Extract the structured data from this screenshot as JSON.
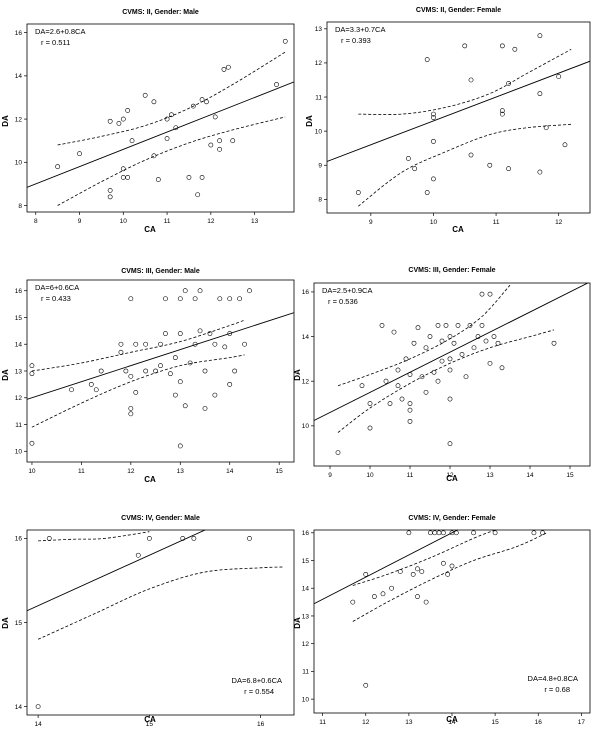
{
  "chart_data": [
    {
      "type": "scatter",
      "title": "CVMS: II, Gender: Male",
      "equation": "DA=2.6+0.8CA",
      "r_label": "r = 0.511",
      "annotation_position": "top-left",
      "xlabel": "CA",
      "ylabel": "DA",
      "xlim": [
        7.8,
        13.9
      ],
      "ylim": [
        7.7,
        16.4
      ],
      "xticks": [
        8,
        9,
        10,
        11,
        12,
        13
      ],
      "yticks": [
        8,
        10,
        12,
        14,
        16
      ],
      "fit": {
        "intercept": 2.6,
        "slope": 0.8
      },
      "ci_upper": [
        [
          8.5,
          10.8
        ],
        [
          9.5,
          11.2
        ],
        [
          10.5,
          11.7
        ],
        [
          11.5,
          12.5
        ],
        [
          12.5,
          13.6
        ],
        [
          13.7,
          15.1
        ]
      ],
      "ci_lower": [
        [
          8.5,
          8.0
        ],
        [
          9.5,
          9.1
        ],
        [
          10.5,
          10.1
        ],
        [
          11.5,
          10.9
        ],
        [
          12.5,
          11.5
        ],
        [
          13.7,
          12.1
        ]
      ],
      "points": [
        [
          8.5,
          9.8
        ],
        [
          9.0,
          10.4
        ],
        [
          9.7,
          11.9
        ],
        [
          9.7,
          8.4
        ],
        [
          9.7,
          8.7
        ],
        [
          9.9,
          11.8
        ],
        [
          10.0,
          12.0
        ],
        [
          10.0,
          9.7
        ],
        [
          10.0,
          9.3
        ],
        [
          10.1,
          12.4
        ],
        [
          10.1,
          9.3
        ],
        [
          10.2,
          11.0
        ],
        [
          10.5,
          13.1
        ],
        [
          10.7,
          12.8
        ],
        [
          10.7,
          10.3
        ],
        [
          10.8,
          9.2
        ],
        [
          11.0,
          12.0
        ],
        [
          11.0,
          11.1
        ],
        [
          11.1,
          12.2
        ],
        [
          11.2,
          11.6
        ],
        [
          11.5,
          9.3
        ],
        [
          11.6,
          12.6
        ],
        [
          11.7,
          8.5
        ],
        [
          11.8,
          12.9
        ],
        [
          11.8,
          9.3
        ],
        [
          11.9,
          12.8
        ],
        [
          12.0,
          10.8
        ],
        [
          12.1,
          12.1
        ],
        [
          12.2,
          10.6
        ],
        [
          12.2,
          11.0
        ],
        [
          12.3,
          14.3
        ],
        [
          12.4,
          14.4
        ],
        [
          12.5,
          11.0
        ],
        [
          13.5,
          13.6
        ],
        [
          13.7,
          15.6
        ]
      ]
    },
    {
      "type": "scatter",
      "title": "CVMS: II, Gender: Female",
      "equation": "DA=3.3+0.7CA",
      "r_label": "r = 0.393",
      "annotation_position": "top-left",
      "xlabel": "CA",
      "ylabel": "DA",
      "xlim": [
        8.3,
        12.5
      ],
      "ylim": [
        7.6,
        13.2
      ],
      "xticks": [
        9,
        10,
        11,
        12
      ],
      "yticks": [
        8,
        9,
        10,
        11,
        12,
        13
      ],
      "fit": {
        "intercept": 3.3,
        "slope": 0.7
      },
      "ci_upper": [
        [
          8.8,
          10.5
        ],
        [
          9.5,
          10.5
        ],
        [
          10.2,
          10.7
        ],
        [
          10.9,
          11.1
        ],
        [
          11.5,
          11.7
        ],
        [
          12.2,
          12.4
        ]
      ],
      "ci_lower": [
        [
          8.8,
          7.8
        ],
        [
          9.5,
          8.8
        ],
        [
          10.2,
          9.4
        ],
        [
          10.9,
          9.9
        ],
        [
          11.5,
          10.1
        ],
        [
          12.2,
          10.2
        ]
      ],
      "points": [
        [
          8.8,
          8.2
        ],
        [
          9.6,
          9.2
        ],
        [
          9.7,
          8.9
        ],
        [
          9.9,
          12.1
        ],
        [
          9.9,
          8.2
        ],
        [
          10.0,
          10.4
        ],
        [
          10.0,
          10.5
        ],
        [
          10.0,
          9.7
        ],
        [
          10.0,
          8.6
        ],
        [
          10.5,
          12.5
        ],
        [
          10.6,
          11.5
        ],
        [
          10.6,
          9.3
        ],
        [
          10.9,
          9.0
        ],
        [
          11.1,
          12.5
        ],
        [
          11.1,
          10.6
        ],
        [
          11.1,
          10.5
        ],
        [
          11.2,
          11.4
        ],
        [
          11.2,
          8.9
        ],
        [
          11.3,
          12.4
        ],
        [
          11.7,
          12.8
        ],
        [
          11.7,
          11.1
        ],
        [
          11.7,
          8.8
        ],
        [
          11.8,
          10.1
        ],
        [
          12.0,
          11.6
        ],
        [
          12.1,
          9.6
        ]
      ]
    },
    {
      "type": "scatter",
      "title": "CVMS: III, Gender: Male",
      "equation": "DA=6+0.6CA",
      "r_label": "r = 0.433",
      "annotation_position": "top-left",
      "xlabel": "CA",
      "ylabel": "DA",
      "xlim": [
        9.9,
        15.3
      ],
      "ylim": [
        9.6,
        16.4
      ],
      "xticks": [
        10,
        11,
        12,
        13,
        14,
        15
      ],
      "yticks": [
        10,
        11,
        12,
        13,
        14,
        15,
        16
      ],
      "fit": {
        "intercept": 6,
        "slope": 0.6
      },
      "ci_upper": [
        [
          10.0,
          13.0
        ],
        [
          11.0,
          13.3
        ],
        [
          12.0,
          13.7
        ],
        [
          13.0,
          14.1
        ],
        [
          14.0,
          14.7
        ],
        [
          14.3,
          14.9
        ]
      ],
      "ci_lower": [
        [
          10.0,
          10.9
        ],
        [
          11.0,
          11.8
        ],
        [
          12.0,
          12.6
        ],
        [
          13.0,
          13.2
        ],
        [
          14.0,
          13.5
        ],
        [
          14.3,
          13.6
        ]
      ],
      "points": [
        [
          10.0,
          13.2
        ],
        [
          10.0,
          12.9
        ],
        [
          10.0,
          10.3
        ],
        [
          10.8,
          12.3
        ],
        [
          11.2,
          12.5
        ],
        [
          11.3,
          12.3
        ],
        [
          11.4,
          13.0
        ],
        [
          11.8,
          14.0
        ],
        [
          11.8,
          13.7
        ],
        [
          11.9,
          13.0
        ],
        [
          12.0,
          15.7
        ],
        [
          12.0,
          12.8
        ],
        [
          12.0,
          11.6
        ],
        [
          12.0,
          11.4
        ],
        [
          12.1,
          12.2
        ],
        [
          12.1,
          14.0
        ],
        [
          12.3,
          14.0
        ],
        [
          12.3,
          13.0
        ],
        [
          12.5,
          13.0
        ],
        [
          12.6,
          14.0
        ],
        [
          12.6,
          13.2
        ],
        [
          12.7,
          15.7
        ],
        [
          12.7,
          14.4
        ],
        [
          12.8,
          12.9
        ],
        [
          12.9,
          13.5
        ],
        [
          12.9,
          12.1
        ],
        [
          13.0,
          15.7
        ],
        [
          13.0,
          14.4
        ],
        [
          13.0,
          12.6
        ],
        [
          13.0,
          10.2
        ],
        [
          13.1,
          16.0
        ],
        [
          13.1,
          11.7
        ],
        [
          13.2,
          13.3
        ],
        [
          13.3,
          15.7
        ],
        [
          13.3,
          14.0
        ],
        [
          13.4,
          16.0
        ],
        [
          13.4,
          14.5
        ],
        [
          13.5,
          13.0
        ],
        [
          13.5,
          11.6
        ],
        [
          13.6,
          14.4
        ],
        [
          13.7,
          14.0
        ],
        [
          13.7,
          12.1
        ],
        [
          13.8,
          15.7
        ],
        [
          13.9,
          13.9
        ],
        [
          14.0,
          15.7
        ],
        [
          14.0,
          14.4
        ],
        [
          14.0,
          12.5
        ],
        [
          14.1,
          13.0
        ],
        [
          14.2,
          15.7
        ],
        [
          14.3,
          14.0
        ],
        [
          14.4,
          16.0
        ]
      ]
    },
    {
      "type": "scatter",
      "title": "CVMS: III, Gender: Female",
      "equation": "DA=2.5+0.9CA",
      "r_label": "r = 0.536",
      "annotation_position": "top-left",
      "xlabel": "CA",
      "ylabel": "DA",
      "xlim": [
        8.6,
        15.5
      ],
      "ylim": [
        8.2,
        16.4
      ],
      "xticks": [
        9,
        10,
        11,
        12,
        13,
        14,
        15
      ],
      "yticks": [
        10,
        12,
        14,
        16
      ],
      "fit": {
        "intercept": 2.5,
        "slope": 0.9
      },
      "ci_upper": [
        [
          9.2,
          11.8
        ],
        [
          10.0,
          12.3
        ],
        [
          11.0,
          13.0
        ],
        [
          12.0,
          13.9
        ],
        [
          12.8,
          14.9
        ],
        [
          13.5,
          16.3
        ]
      ],
      "ci_lower": [
        [
          9.2,
          9.7
        ],
        [
          10.0,
          10.8
        ],
        [
          11.0,
          11.9
        ],
        [
          12.0,
          12.8
        ],
        [
          13.0,
          13.5
        ],
        [
          14.0,
          14.0
        ],
        [
          14.6,
          14.3
        ]
      ],
      "points": [
        [
          9.2,
          8.8
        ],
        [
          9.8,
          11.8
        ],
        [
          10.0,
          9.9
        ],
        [
          10.0,
          11.0
        ],
        [
          10.3,
          14.5
        ],
        [
          10.4,
          12.0
        ],
        [
          10.5,
          11.0
        ],
        [
          10.6,
          14.2
        ],
        [
          10.7,
          12.5
        ],
        [
          10.7,
          11.8
        ],
        [
          10.8,
          11.2
        ],
        [
          10.9,
          13.0
        ],
        [
          11.0,
          12.3
        ],
        [
          11.0,
          11.0
        ],
        [
          11.0,
          10.7
        ],
        [
          11.0,
          10.2
        ],
        [
          11.1,
          13.7
        ],
        [
          11.2,
          14.4
        ],
        [
          11.3,
          12.2
        ],
        [
          11.4,
          13.5
        ],
        [
          11.4,
          11.5
        ],
        [
          11.5,
          14.0
        ],
        [
          11.6,
          12.4
        ],
        [
          11.7,
          12.0
        ],
        [
          11.7,
          14.5
        ],
        [
          11.8,
          13.8
        ],
        [
          11.8,
          12.9
        ],
        [
          11.9,
          14.5
        ],
        [
          12.0,
          14.0
        ],
        [
          12.0,
          13.0
        ],
        [
          12.0,
          12.5
        ],
        [
          12.0,
          11.2
        ],
        [
          12.0,
          9.2
        ],
        [
          12.1,
          13.7
        ],
        [
          12.2,
          14.5
        ],
        [
          12.3,
          13.2
        ],
        [
          12.4,
          12.2
        ],
        [
          12.5,
          14.5
        ],
        [
          12.6,
          13.5
        ],
        [
          12.7,
          14.0
        ],
        [
          12.8,
          15.9
        ],
        [
          12.8,
          14.5
        ],
        [
          12.9,
          13.8
        ],
        [
          13.0,
          12.8
        ],
        [
          13.0,
          15.9
        ],
        [
          13.1,
          14.0
        ],
        [
          13.2,
          13.7
        ],
        [
          13.3,
          12.6
        ],
        [
          14.6,
          13.7
        ]
      ]
    },
    {
      "type": "scatter",
      "title": "CVMS: IV, Gender: Male",
      "equation": "DA=6.8+0.6CA",
      "r_label": "r = 0.554",
      "annotation_position": "bottom-right",
      "xlabel": "CA",
      "ylabel": "DA",
      "xlim": [
        13.9,
        16.3
      ],
      "ylim": [
        13.9,
        16.1
      ],
      "xticks": [
        14,
        15,
        16
      ],
      "yticks": [
        14,
        15,
        16
      ],
      "fit": {
        "intercept": 6.8,
        "slope": 0.6
      },
      "ci_upper": [
        [
          14.0,
          15.97
        ],
        [
          14.3,
          15.99
        ],
        [
          14.6,
          16.0
        ],
        [
          15.0,
          16.08
        ]
      ],
      "ci_lower": [
        [
          14.0,
          14.8
        ],
        [
          14.5,
          15.1
        ],
        [
          15.0,
          15.4
        ],
        [
          15.5,
          15.6
        ],
        [
          16.0,
          15.65
        ],
        [
          16.2,
          15.66
        ]
      ],
      "points": [
        [
          14.0,
          14.0
        ],
        [
          14.1,
          16.0
        ],
        [
          14.9,
          15.8
        ],
        [
          15.0,
          16.0
        ],
        [
          15.3,
          16.0
        ],
        [
          15.4,
          16.0
        ],
        [
          15.9,
          16.0
        ]
      ]
    },
    {
      "type": "scatter",
      "title": "CVMS: IV, Gender: Female",
      "equation": "DA=4.8+0.8CA",
      "r_label": "r = 0.68",
      "annotation_position": "bottom-right",
      "xlabel": "CA",
      "ylabel": "DA",
      "xlim": [
        10.8,
        17.2
      ],
      "ylim": [
        9.5,
        16.1
      ],
      "xticks": [
        11,
        12,
        13,
        14,
        15,
        16,
        17
      ],
      "yticks": [
        10,
        11,
        12,
        13,
        14,
        15,
        16
      ],
      "fit": {
        "intercept": 4.8,
        "slope": 0.8
      },
      "ci_upper": [
        [
          11.7,
          14.1
        ],
        [
          12.5,
          14.5
        ],
        [
          13.5,
          15.1
        ],
        [
          14.5,
          15.8
        ],
        [
          15.0,
          16.1
        ]
      ],
      "ci_lower": [
        [
          11.7,
          12.8
        ],
        [
          12.5,
          13.5
        ],
        [
          13.5,
          14.3
        ],
        [
          14.5,
          15.0
        ],
        [
          15.5,
          15.5
        ],
        [
          16.2,
          16.0
        ]
      ],
      "points": [
        [
          11.7,
          13.5
        ],
        [
          12.0,
          14.5
        ],
        [
          12.0,
          10.5
        ],
        [
          12.2,
          13.7
        ],
        [
          12.4,
          13.8
        ],
        [
          12.6,
          14.0
        ],
        [
          12.8,
          14.6
        ],
        [
          13.0,
          16.0
        ],
        [
          13.1,
          14.5
        ],
        [
          13.2,
          13.7
        ],
        [
          13.2,
          14.7
        ],
        [
          13.3,
          14.6
        ],
        [
          13.4,
          13.5
        ],
        [
          13.5,
          16.0
        ],
        [
          13.6,
          16.0
        ],
        [
          13.7,
          16.0
        ],
        [
          13.8,
          14.9
        ],
        [
          13.8,
          16.0
        ],
        [
          13.9,
          14.5
        ],
        [
          14.0,
          14.8
        ],
        [
          14.0,
          16.0
        ],
        [
          14.1,
          16.0
        ],
        [
          14.5,
          16.0
        ],
        [
          15.0,
          16.0
        ],
        [
          15.9,
          16.0
        ],
        [
          16.1,
          16.0
        ]
      ]
    }
  ]
}
